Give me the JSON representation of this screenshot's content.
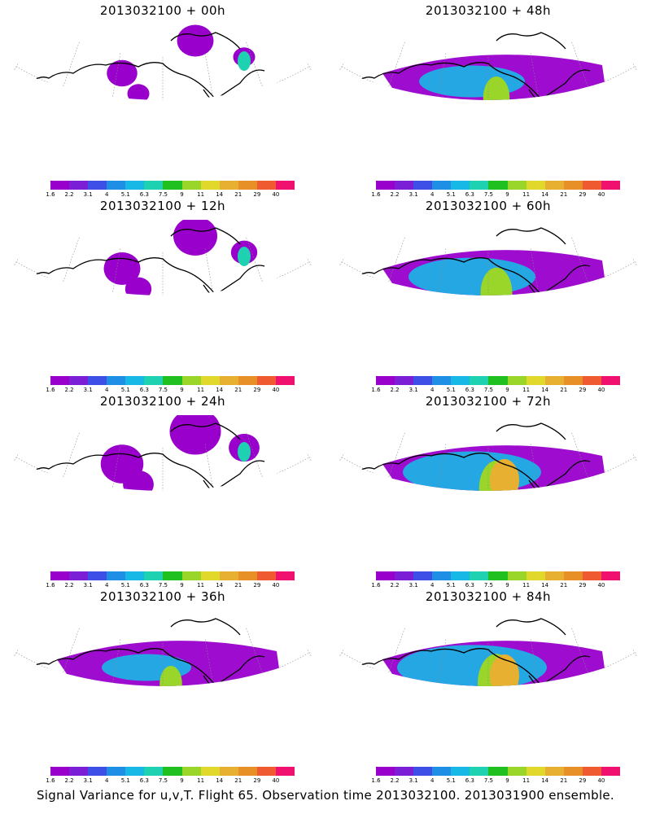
{
  "panels": [
    {
      "title": "2013032100 + 00h",
      "lead_hours": 0,
      "coverage": 0.15
    },
    {
      "title": "2013032100 + 48h",
      "lead_hours": 48,
      "coverage": 0.65
    },
    {
      "title": "2013032100 + 12h",
      "lead_hours": 12,
      "coverage": 0.3
    },
    {
      "title": "2013032100 + 60h",
      "lead_hours": 60,
      "coverage": 0.78
    },
    {
      "title": "2013032100 + 24h",
      "lead_hours": 24,
      "coverage": 0.45
    },
    {
      "title": "2013032100 + 72h",
      "lead_hours": 72,
      "coverage": 0.85
    },
    {
      "title": "2013032100 + 36h",
      "lead_hours": 36,
      "coverage": 0.55
    },
    {
      "title": "2013032100 + 84h",
      "lead_hours": 84,
      "coverage": 0.92
    }
  ],
  "colorbar": {
    "labels": [
      "1.6",
      "2.2",
      "3.1",
      "4",
      "5.1",
      "6.3",
      "7.5",
      "9",
      "11",
      "14",
      "21",
      "29",
      "40"
    ],
    "colors": [
      "#9900cc",
      "#7a1fd6",
      "#3d4fe6",
      "#1f8fe6",
      "#17b8e6",
      "#1ed1b0",
      "#20c020",
      "#9ad62a",
      "#e0d82a",
      "#e8b030",
      "#e89028",
      "#f05a30",
      "#f01070"
    ]
  },
  "footer": "Signal Variance for u,v,T. Flight 65. Observation time 2013032100. 2013031900 ensemble."
}
